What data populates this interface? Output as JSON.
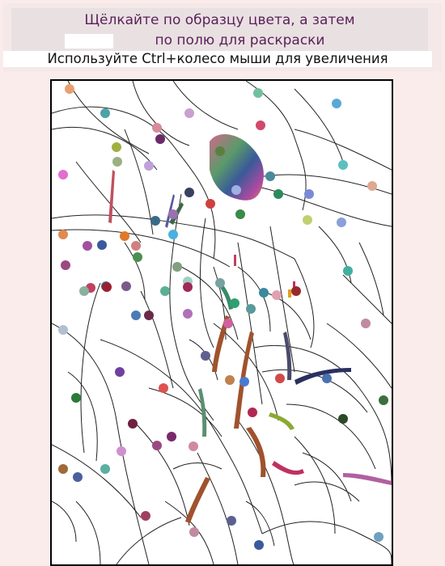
{
  "instructions": {
    "line1": "Щёлкайте по образцу цвета, а затем",
    "line2": "по полю для раскраски",
    "zoom_hint": "Используйте Ctrl+колесо мыши для увеличения"
  },
  "selected_color": "#ffffff",
  "palette_dots": [
    {
      "color": "#e8a070"
    },
    {
      "color": "#4aa3a8"
    },
    {
      "color": "#c9a0d0"
    },
    {
      "color": "#d04a6a"
    },
    {
      "color": "#5aa8d8"
    },
    {
      "color": "#d88a9a"
    },
    {
      "color": "#a0b040"
    },
    {
      "color": "#6a2a6a"
    },
    {
      "color": "#70c0a0"
    },
    {
      "color": "#e070d0"
    },
    {
      "color": "#4a8a9a"
    },
    {
      "color": "#9ab080"
    },
    {
      "color": "#5a8040"
    },
    {
      "color": "#c0a0d8"
    },
    {
      "color": "#2a8a5a"
    },
    {
      "color": "#3a4060"
    },
    {
      "color": "#a0b0e0"
    },
    {
      "color": "#7a8ad8"
    },
    {
      "color": "#5ac0c0"
    },
    {
      "color": "#e0a890"
    },
    {
      "color": "#d04040"
    },
    {
      "color": "#8aa0d8"
    },
    {
      "color": "#3a6a8a"
    },
    {
      "color": "#9a70b0"
    },
    {
      "color": "#c0d070"
    },
    {
      "color": "#3a8a4a"
    },
    {
      "color": "#e08a50"
    },
    {
      "color": "#a050a0"
    },
    {
      "color": "#3a5a9a"
    },
    {
      "color": "#d08080"
    },
    {
      "color": "#e07828"
    },
    {
      "color": "#4a9050"
    },
    {
      "color": "#80a080"
    },
    {
      "color": "#a0d0c0"
    },
    {
      "color": "#a02858"
    },
    {
      "color": "#7a5a8a"
    },
    {
      "color": "#5ab090"
    },
    {
      "color": "#9a4a80"
    },
    {
      "color": "#2a7a9a"
    },
    {
      "color": "#9a2030"
    },
    {
      "color": "#b070b8"
    },
    {
      "color": "#4a7ab8"
    },
    {
      "color": "#7aa0a0"
    },
    {
      "color": "#e0a0b0"
    },
    {
      "color": "#c04060"
    },
    {
      "color": "#40b0a0"
    },
    {
      "color": "#4ab0e0"
    },
    {
      "color": "#8ab0a0"
    },
    {
      "color": "#6a2a4a"
    },
    {
      "color": "#c08aa0"
    },
    {
      "color": "#b0c0d0"
    },
    {
      "color": "#4a70b0"
    },
    {
      "color": "#9a2a2a"
    },
    {
      "color": "#3a8aa0"
    },
    {
      "color": "#d060a0"
    },
    {
      "color": "#30a070"
    },
    {
      "color": "#5a9a9a"
    },
    {
      "color": "#d04a4a"
    },
    {
      "color": "#b02850"
    },
    {
      "color": "#3a7040"
    },
    {
      "color": "#2a4a2a"
    },
    {
      "color": "#2a7a3a"
    },
    {
      "color": "#7040a0"
    },
    {
      "color": "#e05050"
    },
    {
      "color": "#4a7ad0"
    },
    {
      "color": "#702040"
    },
    {
      "color": "#606090"
    },
    {
      "color": "#c08050"
    },
    {
      "color": "#d090d0"
    },
    {
      "color": "#a06a3a"
    },
    {
      "color": "#9a4a80"
    },
    {
      "color": "#7a2a6a"
    },
    {
      "color": "#5ab0a0"
    },
    {
      "color": "#d08aa0"
    },
    {
      "color": "#4a60a0"
    },
    {
      "color": "#a04060"
    },
    {
      "color": "#c08aa0"
    },
    {
      "color": "#3a5a9a"
    },
    {
      "color": "#5a6090"
    },
    {
      "color": "#70a0c0"
    }
  ]
}
